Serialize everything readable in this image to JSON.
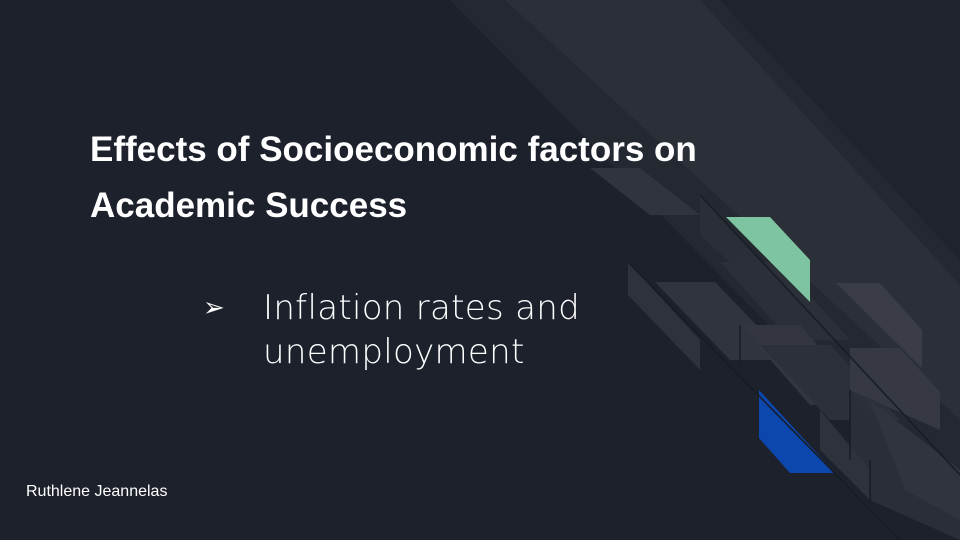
{
  "slide": {
    "title": "Effects of Socioeconomic factors on Academic Success",
    "bullet_marker": "➢",
    "bullet_text": "Inflation rates and unemployment",
    "author": "Ruthlene Jeannelas"
  },
  "colors": {
    "background": "#1c212c",
    "text": "#ffffff",
    "accent_green": "#7fc4a0",
    "accent_blue": "#0c47ad",
    "stripe_dark": "#2b2f38",
    "stripe_mid": "#33363e"
  }
}
